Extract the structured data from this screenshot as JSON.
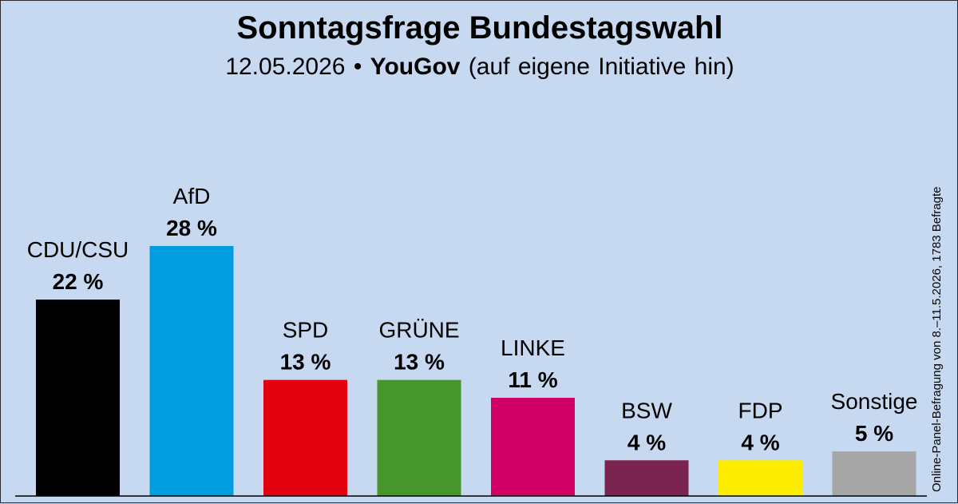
{
  "header": {
    "title": "Sonntagsfrage Bundestagswahl",
    "date": "12.05.2026",
    "bullet": "•",
    "source": "YouGov",
    "note": "(auf eigene Initiative hin)"
  },
  "side_note": "Online-Panel-Befragung von 8.–11.5.2026, 1783 Befragte",
  "chart_data": {
    "type": "bar",
    "title": "Sonntagsfrage Bundestagswahl",
    "categories": [
      "CDU/CSU",
      "AfD",
      "SPD",
      "GRÜNE",
      "LINKE",
      "BSW",
      "FDP",
      "Sonstige"
    ],
    "values": [
      22,
      28,
      13,
      13,
      11,
      4,
      4,
      5
    ],
    "value_labels": [
      "22 %",
      "28 %",
      "13 %",
      "13 %",
      "11 %",
      "4 %",
      "4 %",
      "5 %"
    ],
    "colors": [
      "#000000",
      "#009ee0",
      "#e3000f",
      "#46962b",
      "#d10067",
      "#7b2450",
      "#ffed00",
      "#a6a6a6"
    ],
    "unit": "%",
    "ylim": [
      0,
      28
    ],
    "grid": false,
    "legend": "none"
  }
}
